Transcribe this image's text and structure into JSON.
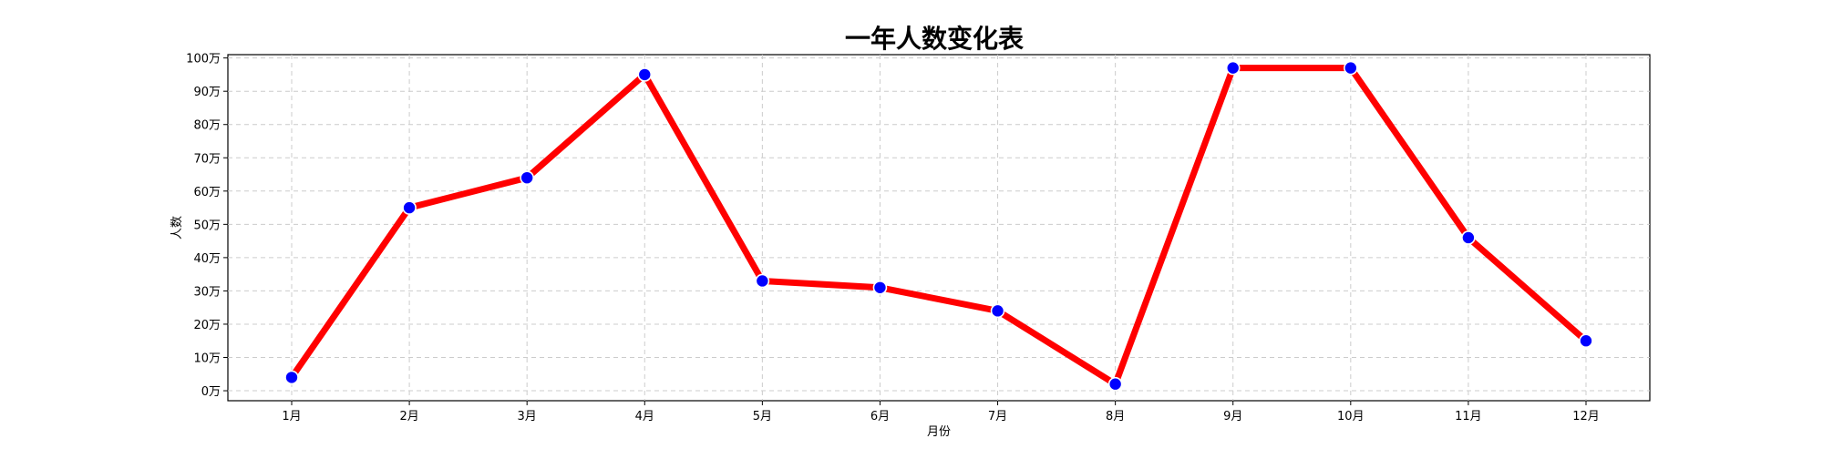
{
  "chart_data": {
    "type": "line",
    "title": "一年人数变化表",
    "xlabel": "月份",
    "ylabel": "人数",
    "categories": [
      "1月",
      "2月",
      "3月",
      "4月",
      "5月",
      "6月",
      "7月",
      "8月",
      "9月",
      "10月",
      "11月",
      "12月"
    ],
    "series": [
      {
        "values": [
          4,
          55,
          64,
          95,
          33,
          31,
          24,
          2,
          97,
          97,
          46,
          15
        ]
      }
    ],
    "ylim": [
      -3,
      101
    ],
    "yticks": [
      0,
      10,
      20,
      30,
      40,
      50,
      60,
      70,
      80,
      90,
      100
    ],
    "ytick_labels": [
      "0万",
      "10万",
      "20万",
      "30万",
      "40万",
      "50万",
      "60万",
      "70万",
      "80万",
      "90万",
      "100万"
    ],
    "grid": true,
    "line_color": "#ff0000",
    "marker_color": "#0000ff",
    "marker_edge_color": "#ffffff"
  }
}
